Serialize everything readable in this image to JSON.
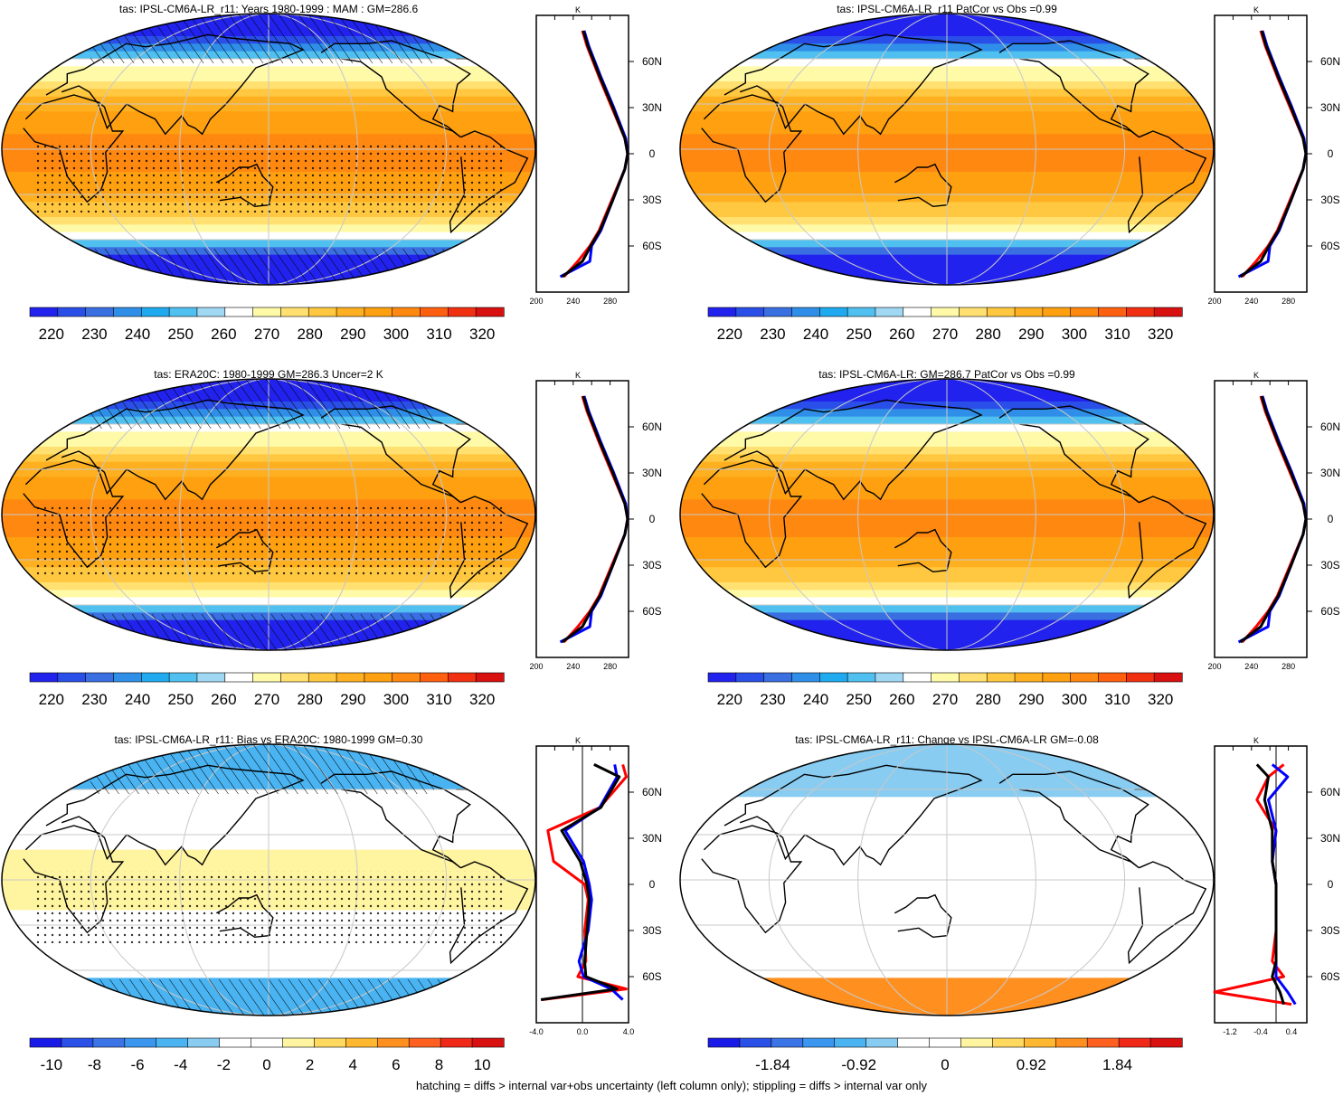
{
  "chart_data": [
    {
      "type": "heatmap",
      "title": "tas: IPSL-CM6A-LR_r11: Years 1980-1999 : MAM : GM=286.6",
      "colorbar_ticks": [
        "220",
        "230",
        "240",
        "250",
        "260",
        "270",
        "280",
        "290",
        "300",
        "310",
        "320"
      ],
      "colorbar_range": [
        215,
        325
      ],
      "field": "absolute",
      "hatching": true,
      "stippling": true,
      "profile": {
        "type": "line",
        "unit": "K",
        "xticks": [
          "200",
          "240",
          "280"
        ],
        "xlim": [
          200,
          300
        ],
        "yticks": [
          "60N",
          "30N",
          "0",
          "30S",
          "60S"
        ],
        "series": [
          {
            "color": "#ff0000",
            "x": [
              230,
              245,
              258,
              268,
              282,
              296,
              299,
              296,
              282,
              268,
              255,
              250
            ],
            "y": [
              -80,
              -70,
              -60,
              -50,
              -30,
              -10,
              0,
              10,
              30,
              50,
              70,
              80
            ]
          },
          {
            "color": "#0000ff",
            "x": [
              226,
              258,
              260,
              270,
              283,
              296,
              299,
              297,
              284,
              270,
              257,
              252
            ],
            "y": [
              -80,
              -70,
              -60,
              -50,
              -30,
              -10,
              0,
              10,
              30,
              50,
              70,
              80
            ]
          },
          {
            "color": "#000000",
            "x": [
              228,
              250,
              259,
              269,
              283,
              296,
              299,
              296,
              283,
              269,
              256,
              251
            ],
            "y": [
              -80,
              -70,
              -60,
              -50,
              -30,
              -10,
              0,
              10,
              30,
              50,
              70,
              80
            ]
          }
        ]
      }
    },
    {
      "type": "heatmap",
      "title": "tas: IPSL-CM6A-LR_r11 PatCor vs Obs =0.99",
      "colorbar_ticks": [
        "220",
        "230",
        "240",
        "250",
        "260",
        "270",
        "280",
        "290",
        "300",
        "310",
        "320"
      ],
      "colorbar_range": [
        215,
        325
      ],
      "field": "absolute",
      "hatching": false,
      "stippling": false,
      "profile": {
        "type": "line",
        "unit": "K",
        "xticks": [
          "200",
          "240",
          "280"
        ],
        "xlim": [
          200,
          300
        ],
        "yticks": [
          "60N",
          "30N",
          "0",
          "30S",
          "60S"
        ],
        "series": [
          {
            "color": "#ff0000",
            "x": [
              230,
              245,
              258,
              268,
              282,
              296,
              299,
              296,
              282,
              268,
              255,
              250
            ],
            "y": [
              -80,
              -70,
              -60,
              -50,
              -30,
              -10,
              0,
              10,
              30,
              50,
              70,
              80
            ]
          },
          {
            "color": "#0000ff",
            "x": [
              226,
              258,
              260,
              270,
              283,
              296,
              299,
              297,
              284,
              270,
              257,
              252
            ],
            "y": [
              -80,
              -70,
              -60,
              -50,
              -30,
              -10,
              0,
              10,
              30,
              50,
              70,
              80
            ]
          },
          {
            "color": "#000000",
            "x": [
              228,
              250,
              259,
              269,
              283,
              296,
              299,
              296,
              283,
              269,
              256,
              251
            ],
            "y": [
              -80,
              -70,
              -60,
              -50,
              -30,
              -10,
              0,
              10,
              30,
              50,
              70,
              80
            ]
          }
        ]
      }
    },
    {
      "type": "heatmap",
      "title": "tas: ERA20C: 1980-1999 GM=286.3 Uncer=2 K",
      "colorbar_ticks": [
        "220",
        "230",
        "240",
        "250",
        "260",
        "270",
        "280",
        "290",
        "300",
        "310",
        "320"
      ],
      "colorbar_range": [
        215,
        325
      ],
      "field": "absolute",
      "hatching": true,
      "stippling": true,
      "profile": {
        "type": "line",
        "unit": "K",
        "xticks": [
          "200",
          "240",
          "280"
        ],
        "xlim": [
          200,
          300
        ],
        "yticks": [
          "60N",
          "30N",
          "0",
          "30S",
          "60S"
        ],
        "series": [
          {
            "color": "#ff0000",
            "x": [
              230,
              245,
              258,
              268,
              282,
              296,
              299,
              296,
              282,
              268,
              255,
              250
            ],
            "y": [
              -80,
              -70,
              -60,
              -50,
              -30,
              -10,
              0,
              10,
              30,
              50,
              70,
              80
            ]
          },
          {
            "color": "#0000ff",
            "x": [
              226,
              258,
              260,
              270,
              283,
              296,
              299,
              297,
              284,
              270,
              257,
              252
            ],
            "y": [
              -80,
              -70,
              -60,
              -50,
              -30,
              -10,
              0,
              10,
              30,
              50,
              70,
              80
            ]
          },
          {
            "color": "#000000",
            "x": [
              228,
              250,
              259,
              269,
              283,
              296,
              299,
              296,
              283,
              269,
              256,
              251
            ],
            "y": [
              -80,
              -70,
              -60,
              -50,
              -30,
              -10,
              0,
              10,
              30,
              50,
              70,
              80
            ]
          }
        ]
      }
    },
    {
      "type": "heatmap",
      "title": "tas: IPSL-CM6A-LR: GM=286.7 PatCor vs Obs =0.99",
      "colorbar_ticks": [
        "220",
        "230",
        "240",
        "250",
        "260",
        "270",
        "280",
        "290",
        "300",
        "310",
        "320"
      ],
      "colorbar_range": [
        215,
        325
      ],
      "field": "absolute",
      "hatching": false,
      "stippling": false,
      "profile": {
        "type": "line",
        "unit": "K",
        "xticks": [
          "200",
          "240",
          "280"
        ],
        "xlim": [
          200,
          300
        ],
        "yticks": [
          "60N",
          "30N",
          "0",
          "30S",
          "60S"
        ],
        "series": [
          {
            "color": "#ff0000",
            "x": [
              230,
              245,
              258,
              268,
              282,
              296,
              299,
              296,
              282,
              268,
              255,
              250
            ],
            "y": [
              -80,
              -70,
              -60,
              -50,
              -30,
              -10,
              0,
              10,
              30,
              50,
              70,
              80
            ]
          },
          {
            "color": "#0000ff",
            "x": [
              226,
              258,
              260,
              270,
              283,
              296,
              299,
              297,
              284,
              270,
              257,
              252
            ],
            "y": [
              -80,
              -70,
              -60,
              -50,
              -30,
              -10,
              0,
              10,
              30,
              50,
              70,
              80
            ]
          },
          {
            "color": "#000000",
            "x": [
              228,
              250,
              259,
              269,
              283,
              296,
              299,
              296,
              283,
              269,
              256,
              251
            ],
            "y": [
              -80,
              -70,
              -60,
              -50,
              -30,
              -10,
              0,
              10,
              30,
              50,
              70,
              80
            ]
          }
        ]
      }
    },
    {
      "type": "heatmap",
      "title": "tas: IPSL-CM6A-LR_r11: Bias vs ERA20C: 1980-1999 GM=0.30",
      "colorbar_ticks": [
        "-10",
        "-8",
        "-6",
        "-4",
        "-2",
        "0",
        "2",
        "4",
        "6",
        "8",
        "10"
      ],
      "colorbar_range": [
        -11,
        11
      ],
      "field": "bias",
      "hatching": true,
      "stippling": true,
      "profile": {
        "type": "line",
        "unit": "K",
        "xticks": [
          "-4.0",
          "0.0",
          "4.0"
        ],
        "xlim": [
          -4,
          4
        ],
        "yticks": [
          "60N",
          "30N",
          "0",
          "30S",
          "60S"
        ],
        "series": [
          {
            "color": "#ff0000",
            "x": [
              -3.5,
              3.8,
              -0.4,
              0.3,
              0.2,
              0.5,
              0.2,
              -2.5,
              -3,
              1.5,
              3.8,
              3.5
            ],
            "y": [
              -75,
              -68,
              -60,
              -50,
              -30,
              -10,
              0,
              15,
              35,
              50,
              70,
              78
            ]
          },
          {
            "color": "#0000ff",
            "x": [
              3.5,
              2.5,
              0.1,
              -0.3,
              0.5,
              0.8,
              0.6,
              0.1,
              -1.5,
              1.5,
              3.0,
              2.8
            ],
            "y": [
              -75,
              -68,
              -60,
              -50,
              -30,
              -10,
              0,
              15,
              35,
              50,
              70,
              78
            ]
          },
          {
            "color": "#000000",
            "x": [
              -3.6,
              3.0,
              0.3,
              0.2,
              0.4,
              0.6,
              0.4,
              -0.2,
              -1.8,
              1.6,
              3.2,
              1.0
            ],
            "y": [
              -75,
              -68,
              -60,
              -50,
              -30,
              -10,
              0,
              15,
              35,
              50,
              70,
              78
            ]
          }
        ]
      }
    },
    {
      "type": "heatmap",
      "title": "tas: IPSL-CM6A-LR_r11: Change vs IPSL-CM6A-LR GM=-0.08",
      "colorbar_ticks": [
        "-1.84",
        "-0.92",
        "0",
        "0.92",
        "1.84"
      ],
      "colorbar_range": [
        -2.53,
        2.53
      ],
      "field": "change",
      "hatching": false,
      "stippling": false,
      "profile": {
        "type": "line",
        "unit": "K",
        "xticks": [
          "-1.2",
          "-0.4",
          "0.4"
        ],
        "xlim": [
          -1.6,
          0.8
        ],
        "yticks": [
          "60N",
          "30N",
          "0",
          "30S",
          "60S"
        ],
        "series": [
          {
            "color": "#ff0000",
            "x": [
              0.4,
              -1.6,
              0.2,
              -0.1,
              0.0,
              0.0,
              0.0,
              -0.1,
              0.0,
              -0.5,
              -0.2,
              0.2
            ],
            "y": [
              -78,
              -70,
              -60,
              -50,
              -30,
              -10,
              0,
              15,
              35,
              55,
              70,
              78
            ]
          },
          {
            "color": "#0000ff",
            "x": [
              0.5,
              0.3,
              0.0,
              0.0,
              0.0,
              0.0,
              0.0,
              -0.1,
              0.0,
              -0.2,
              0.3,
              -0.1
            ],
            "y": [
              -78,
              -70,
              -60,
              -50,
              -30,
              -10,
              0,
              15,
              35,
              55,
              70,
              78
            ]
          },
          {
            "color": "#000000",
            "x": [
              0.2,
              0.1,
              -0.1,
              0.0,
              0.0,
              0.0,
              0.0,
              -0.1,
              -0.1,
              -0.3,
              -0.2,
              -0.5
            ],
            "y": [
              -78,
              -70,
              -60,
              -50,
              -30,
              -10,
              0,
              15,
              35,
              55,
              70,
              78
            ]
          }
        ]
      }
    }
  ],
  "footer": "hatching = diffs > internal var+obs uncertainty (left column only); stippling = diffs > internal var only",
  "colors": {
    "abs_palette": [
      "#2222ee",
      "#2a4fe8",
      "#3a6fe2",
      "#2f8fe8",
      "#1faaf0",
      "#50c0f0",
      "#a0d8f4",
      "#ffffff",
      "#fffaa8",
      "#ffe070",
      "#ffc840",
      "#ffb020",
      "#ffa010",
      "#ff8810",
      "#ff6010",
      "#f03010",
      "#d81010"
    ],
    "diff_palette": [
      "#1a1ae8",
      "#2a50e8",
      "#3a74e6",
      "#3a96ee",
      "#4ab4f2",
      "#88ccf2",
      "#ffffff",
      "#ffffff",
      "#fff4a0",
      "#ffd860",
      "#ffb830",
      "#ff9020",
      "#ff6020",
      "#f02818",
      "#d81010"
    ]
  }
}
